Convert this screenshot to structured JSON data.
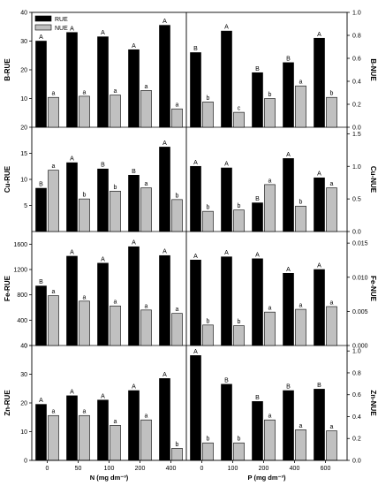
{
  "legend": {
    "items": [
      {
        "label": "RUE",
        "color": "#000000"
      },
      {
        "label": "NUE",
        "color": "#c0c0c0"
      }
    ],
    "placement": "top-left"
  },
  "x_axes": {
    "left": {
      "label": "N (mg dm⁻³)",
      "categories": [
        "0",
        "50",
        "100",
        "200",
        "400"
      ]
    },
    "right": {
      "label": "P (mg dm⁻³)",
      "categories": [
        "0",
        "100",
        "200",
        "400",
        "600"
      ]
    }
  },
  "chart_data": [
    {
      "type": "bar",
      "ylabel_left": "B-RUE",
      "ylabel_right": "B-NUE",
      "ylim_left": [
        0,
        40
      ],
      "ylim_right": [
        0,
        1.0
      ],
      "yticks_left": [
        "10",
        "20",
        "30",
        "40"
      ],
      "yticks_right": [
        "0.0",
        "0.2",
        "0.4",
        "0.6",
        "0.8",
        "1.0"
      ],
      "panels": [
        {
          "factor": "N",
          "categories": [
            "0",
            "50",
            "100",
            "200",
            "400"
          ],
          "series": [
            {
              "name": "RUE",
              "axis": "left",
              "values": [
                30,
                33,
                31.5,
                27,
                35.5
              ],
              "letters": [
                "A",
                "A",
                "A",
                "A",
                "A"
              ]
            },
            {
              "name": "NUE",
              "axis": "right",
              "values": [
                0.26,
                0.27,
                0.28,
                0.32,
                0.16
              ],
              "letters": [
                "a",
                "a",
                "a",
                "a",
                "a"
              ]
            }
          ]
        },
        {
          "factor": "P",
          "categories": [
            "0",
            "100",
            "200",
            "400",
            "600"
          ],
          "series": [
            {
              "name": "RUE",
              "axis": "left",
              "values": [
                26,
                33.5,
                19,
                22.5,
                31
              ],
              "letters": [
                "B",
                "A",
                "B",
                "B",
                "A"
              ]
            },
            {
              "name": "NUE",
              "axis": "right",
              "values": [
                0.22,
                0.13,
                0.25,
                0.36,
                0.26
              ],
              "letters": [
                "b",
                "c",
                "b",
                "a",
                "b"
              ]
            }
          ]
        }
      ]
    },
    {
      "type": "bar",
      "ylabel_left": "Cu-RUE",
      "ylabel_right": "Cu-NUE",
      "ylim_left": [
        0,
        20
      ],
      "ylim_right": [
        0,
        1.6
      ],
      "yticks_left": [
        "5",
        "10",
        "15",
        "20"
      ],
      "yticks_right": [
        "0.0",
        "0.5",
        "1.0",
        "1.5"
      ],
      "panels": [
        {
          "factor": "N",
          "categories": [
            "0",
            "50",
            "100",
            "200",
            "400"
          ],
          "series": [
            {
              "name": "RUE",
              "axis": "left",
              "values": [
                8.3,
                13.2,
                12.0,
                10.8,
                16.2
              ],
              "letters": [
                "B",
                "A",
                "B",
                "B",
                "A"
              ]
            },
            {
              "name": "NUE",
              "axis": "right",
              "values": [
                0.94,
                0.5,
                0.62,
                0.67,
                0.49
              ],
              "letters": [
                "a",
                "b",
                "b",
                "a",
                "b"
              ]
            }
          ]
        },
        {
          "factor": "P",
          "categories": [
            "0",
            "100",
            "200",
            "400",
            "600"
          ],
          "series": [
            {
              "name": "RUE",
              "axis": "left",
              "values": [
                12.5,
                12.2,
                5.5,
                14.0,
                10.3
              ],
              "letters": [
                "A",
                "A",
                "B",
                "A",
                "A"
              ]
            },
            {
              "name": "NUE",
              "axis": "right",
              "values": [
                0.31,
                0.33,
                0.72,
                0.39,
                0.67
              ],
              "letters": [
                "b",
                "b",
                "a",
                "b",
                "a"
              ]
            }
          ]
        }
      ]
    },
    {
      "type": "bar",
      "ylabel_left": "Fe-RUE",
      "ylabel_right": "Fe-NUE",
      "ylim_left": [
        0,
        1800
      ],
      "ylim_right": [
        0,
        0.0167
      ],
      "yticks_left": [
        "0",
        "400",
        "800",
        "1200",
        "1600"
      ],
      "yticks_right": [
        "0.000",
        "0.005",
        "0.010",
        "0.015"
      ],
      "panels": [
        {
          "factor": "N",
          "categories": [
            "0",
            "50",
            "100",
            "200",
            "400"
          ],
          "series": [
            {
              "name": "RUE",
              "axis": "left",
              "values": [
                940,
                1410,
                1300,
                1560,
                1420
              ],
              "letters": [
                "B",
                "A",
                "A",
                "A",
                "A"
              ]
            },
            {
              "name": "NUE",
              "axis": "right",
              "values": [
                0.0073,
                0.0065,
                0.0058,
                0.0052,
                0.0047
              ],
              "letters": [
                "a",
                "a",
                "a",
                "a",
                "a"
              ]
            }
          ]
        },
        {
          "factor": "P",
          "categories": [
            "0",
            "100",
            "200",
            "400",
            "600"
          ],
          "series": [
            {
              "name": "RUE",
              "axis": "left",
              "values": [
                1350,
                1400,
                1370,
                1140,
                1200
              ],
              "letters": [
                "A",
                "A",
                "A",
                "A",
                "A"
              ]
            },
            {
              "name": "NUE",
              "axis": "right",
              "values": [
                0.003,
                0.0029,
                0.0049,
                0.0053,
                0.0057
              ],
              "letters": [
                "b",
                "b",
                "a",
                "a",
                "a"
              ]
            }
          ]
        }
      ]
    },
    {
      "type": "bar",
      "ylabel_left": "Zn-RUE",
      "ylabel_right": "Zn-NUE",
      "ylim_left": [
        0,
        40
      ],
      "ylim_right": [
        0,
        1.05
      ],
      "yticks_left": [
        "0",
        "10",
        "20",
        "30",
        "40"
      ],
      "yticks_right": [
        "0.0",
        "0.2",
        "0.4",
        "0.6",
        "0.8",
        "1.0"
      ],
      "panels": [
        {
          "factor": "N",
          "categories": [
            "0",
            "50",
            "100",
            "200",
            "400"
          ],
          "series": [
            {
              "name": "RUE",
              "axis": "left",
              "values": [
                19.5,
                22.5,
                21,
                24.3,
                28.5
              ],
              "letters": [
                "A",
                "A",
                "A",
                "A",
                "A"
              ]
            },
            {
              "name": "NUE",
              "axis": "right",
              "values": [
                0.41,
                0.41,
                0.32,
                0.37,
                0.11
              ],
              "letters": [
                "a",
                "a",
                "a",
                "a",
                "b"
              ]
            }
          ]
        },
        {
          "factor": "P",
          "categories": [
            "0",
            "100",
            "200",
            "400",
            "600"
          ],
          "series": [
            {
              "name": "RUE",
              "axis": "left",
              "values": [
                36.5,
                26.5,
                20.5,
                24.3,
                24.8
              ],
              "letters": [
                "A",
                "B",
                "B",
                "B",
                "B"
              ]
            },
            {
              "name": "NUE",
              "axis": "right",
              "values": [
                0.16,
                0.16,
                0.37,
                0.28,
                0.27
              ],
              "letters": [
                "b",
                "b",
                "a",
                "a",
                "a"
              ]
            }
          ]
        }
      ]
    }
  ]
}
